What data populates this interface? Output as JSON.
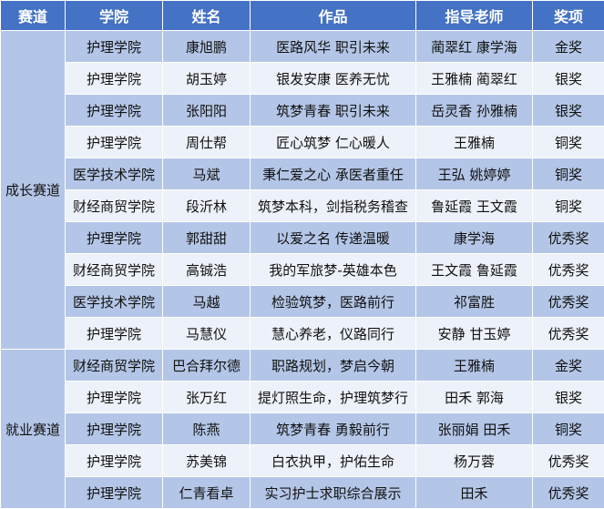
{
  "headers": [
    "赛道",
    "学院",
    "姓名",
    "作品",
    "指导老师",
    "奖项"
  ],
  "groups": [
    {
      "track": "成长赛道",
      "rows": [
        [
          "护理学院",
          "康旭鹏",
          "医路风华  职引未来",
          "蔺翠红  康学海",
          "金奖"
        ],
        [
          "护理学院",
          "胡玉婷",
          "银发安康  医养无忧",
          "王雅楠  蔺翠红",
          "银奖"
        ],
        [
          "护理学院",
          "张阳阳",
          "筑梦青春  职引未来",
          "岳灵香  孙雅楠",
          "银奖"
        ],
        [
          "护理学院",
          "周仕帮",
          "匠心筑梦  仁心暖人",
          "王雅楠",
          "铜奖"
        ],
        [
          "医学技术学院",
          "马斌",
          "秉仁爱之心  承医者重任",
          "王弘  姚婷婷",
          "铜奖"
        ],
        [
          "财经商贸学院",
          "段沂林",
          "筑梦本科，剑指税务稽查",
          "鲁延霞  王文霞",
          "铜奖"
        ],
        [
          "护理学院",
          "郭甜甜",
          "以爱之名  传递温暖",
          "康学海",
          "优秀奖"
        ],
        [
          "财经商贸学院",
          "高铖浩",
          "我的军旅梦-英雄本色",
          "王文霞  鲁延霞",
          "优秀奖"
        ],
        [
          "医学技术学院",
          "马越",
          "检验筑梦，医路前行",
          "祁富胜",
          "优秀奖"
        ],
        [
          "护理学院",
          "马慧仪",
          "慧心养老，仪路同行",
          "安静  甘玉婷",
          "优秀奖"
        ]
      ]
    },
    {
      "track": "就业赛道",
      "rows": [
        [
          "财经商贸学院",
          "巴合拜尔德",
          "职路规划，梦启今朝",
          "王雅楠",
          "金奖"
        ],
        [
          "护理学院",
          "张万红",
          "提灯照生命，护理筑梦行",
          "田禾  郭海",
          "银奖"
        ],
        [
          "护理学院",
          "陈燕",
          "筑梦青春  勇毅前行",
          "张丽娟  田禾",
          "铜奖"
        ],
        [
          "护理学院",
          "苏美锦",
          "白衣执甲，护佑生命",
          "杨万蓉",
          "优秀奖"
        ],
        [
          "护理学院",
          "仁青看卓",
          "实习护士求职综合展示",
          "田禾",
          "优秀奖"
        ]
      ]
    }
  ],
  "colors": {
    "header": "#4472C4",
    "row_dark": "#B4C6E7",
    "row_light": "#EDF1F9"
  }
}
